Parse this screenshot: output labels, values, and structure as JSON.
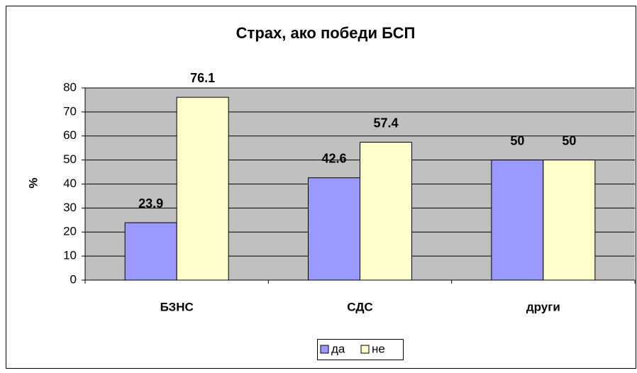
{
  "chart_data": {
    "type": "bar",
    "title": "Страх, ако победи БСП",
    "y_label": "%",
    "categories": [
      "БЗНС",
      "СДС",
      "други"
    ],
    "series": [
      {
        "name": "да",
        "color": "#9999ff",
        "values": [
          23.9,
          42.6,
          50
        ]
      },
      {
        "name": "не",
        "color": "#ffffcc",
        "values": [
          76.1,
          57.4,
          50
        ]
      }
    ],
    "ylim": [
      0,
      80
    ],
    "yticks": [
      0,
      10,
      20,
      30,
      40,
      50,
      60,
      70,
      80
    ],
    "grid": true,
    "legend": "bottom"
  }
}
